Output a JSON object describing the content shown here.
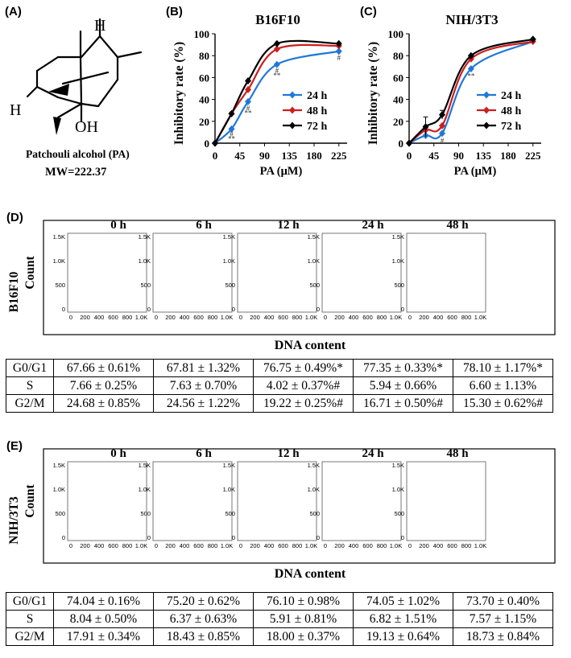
{
  "panel_labels": {
    "a": "(A)",
    "b": "(B)",
    "c": "(C)",
    "d": "(D)",
    "e": "(E)"
  },
  "molecule": {
    "name": "Patchouli alcohol (PA)",
    "mw": "MW=222.37",
    "atom_h_top": "H",
    "atom_h_left": "H",
    "atom_oh": "OH"
  },
  "chart_data": [
    {
      "type": "line",
      "title": "B16F10",
      "xlabel": "PA (μM)",
      "ylabel": "Inhibitory rate (%)",
      "x": [
        0,
        30,
        60,
        112.5,
        225
      ],
      "x_ticks": [
        "0",
        "45",
        "90",
        "135",
        "180",
        "225"
      ],
      "x_tick_values": [
        0,
        45,
        90,
        135,
        180,
        225
      ],
      "y_ticks": [
        "0",
        "20",
        "40",
        "60",
        "80",
        "100"
      ],
      "xlim": [
        0,
        240
      ],
      "ylim": [
        0,
        100
      ],
      "series": [
        {
          "name": "24 h",
          "color": "#1f77d8",
          "values": [
            0,
            13,
            38,
            72,
            84
          ],
          "marker": "diamond"
        },
        {
          "name": "48 h",
          "color": "#cc1f1f",
          "values": [
            0,
            27,
            49,
            86,
            89
          ],
          "marker": "diamond"
        },
        {
          "name": "72 h",
          "color": "#000000",
          "values": [
            0,
            27,
            57,
            91,
            91
          ],
          "marker": "diamond"
        }
      ],
      "annotations": [
        "#",
        "**",
        "#",
        "**",
        "#",
        "**",
        "#"
      ],
      "legend": "center-right"
    },
    {
      "type": "line",
      "title": "NIH/3T3",
      "xlabel": "PA (μM)",
      "ylabel": "Inhibitory rate (%)",
      "x": [
        0,
        30,
        60,
        112.5,
        225
      ],
      "x_ticks": [
        "0",
        "45",
        "90",
        "135",
        "180",
        "225"
      ],
      "x_tick_values": [
        0,
        45,
        90,
        135,
        180,
        225
      ],
      "y_ticks": [
        "0",
        "20",
        "40",
        "60",
        "80",
        "100"
      ],
      "xlim": [
        0,
        240
      ],
      "ylim": [
        0,
        100
      ],
      "series": [
        {
          "name": "24 h",
          "color": "#1f77d8",
          "values": [
            0,
            7,
            9,
            68,
            93
          ],
          "marker": "diamond"
        },
        {
          "name": "48 h",
          "color": "#cc1f1f",
          "values": [
            0,
            12,
            16,
            77,
            93
          ],
          "marker": "diamond"
        },
        {
          "name": "72 h",
          "color": "#000000",
          "values": [
            0,
            15,
            26,
            80,
            95
          ],
          "marker": "diamond"
        }
      ],
      "annotations": [
        "#",
        "**"
      ],
      "legend": "center-right"
    }
  ],
  "flow": {
    "times": [
      "0 h",
      "6 h",
      "12 h",
      "24 h",
      "48 h"
    ],
    "y_ticks": [
      "0",
      "500",
      "1.0K",
      "1.5K"
    ],
    "x_ticks": [
      "0",
      "200",
      "400",
      "600",
      "800",
      "1.0K"
    ],
    "b16": {
      "row_label": "B16F10",
      "count_label": "Count",
      "xlabel": "DNA content"
    },
    "nih": {
      "row_label": "NIH/3T3",
      "count_label": "Count",
      "xlabel": "DNA content"
    }
  },
  "table_d": {
    "rows": [
      {
        "phase": "G0/G1",
        "cells": [
          "67.66 ± 0.61%",
          "67.81 ± 1.32%",
          "76.75 ± 0.49%*",
          "77.35 ± 0.33%*",
          "78.10 ± 1.17%*"
        ]
      },
      {
        "phase": "S",
        "cells": [
          "7.66 ± 0.25%",
          "7.63 ± 0.70%",
          "4.02 ± 0.37%#",
          "5.94 ± 0.66%",
          "6.60 ± 1.13%"
        ]
      },
      {
        "phase": "G2/M",
        "cells": [
          "24.68 ± 0.85%",
          "24.56 ± 1.22%",
          "19.22 ± 0.25%#",
          "16.71 ± 0.50%#",
          "15.30 ± 0.62%#"
        ]
      }
    ]
  },
  "table_e": {
    "rows": [
      {
        "phase": "G0/G1",
        "cells": [
          "74.04 ± 0.16%",
          "75.20 ± 0.62%",
          "76.10 ± 0.98%",
          "74.05 ± 1.02%",
          "73.70 ± 0.40%"
        ]
      },
      {
        "phase": "S",
        "cells": [
          "8.04 ± 0.50%",
          "6.37 ± 0.63%",
          "5.91 ± 0.81%",
          "6.82 ± 1.51%",
          "7.57 ± 1.15%"
        ]
      },
      {
        "phase": "G2/M",
        "cells": [
          "17.91 ± 0.34%",
          "18.43 ± 0.85%",
          "18.00 ± 0.37%",
          "19.13 ± 0.64%",
          "18.73 ± 0.84%"
        ]
      }
    ]
  }
}
